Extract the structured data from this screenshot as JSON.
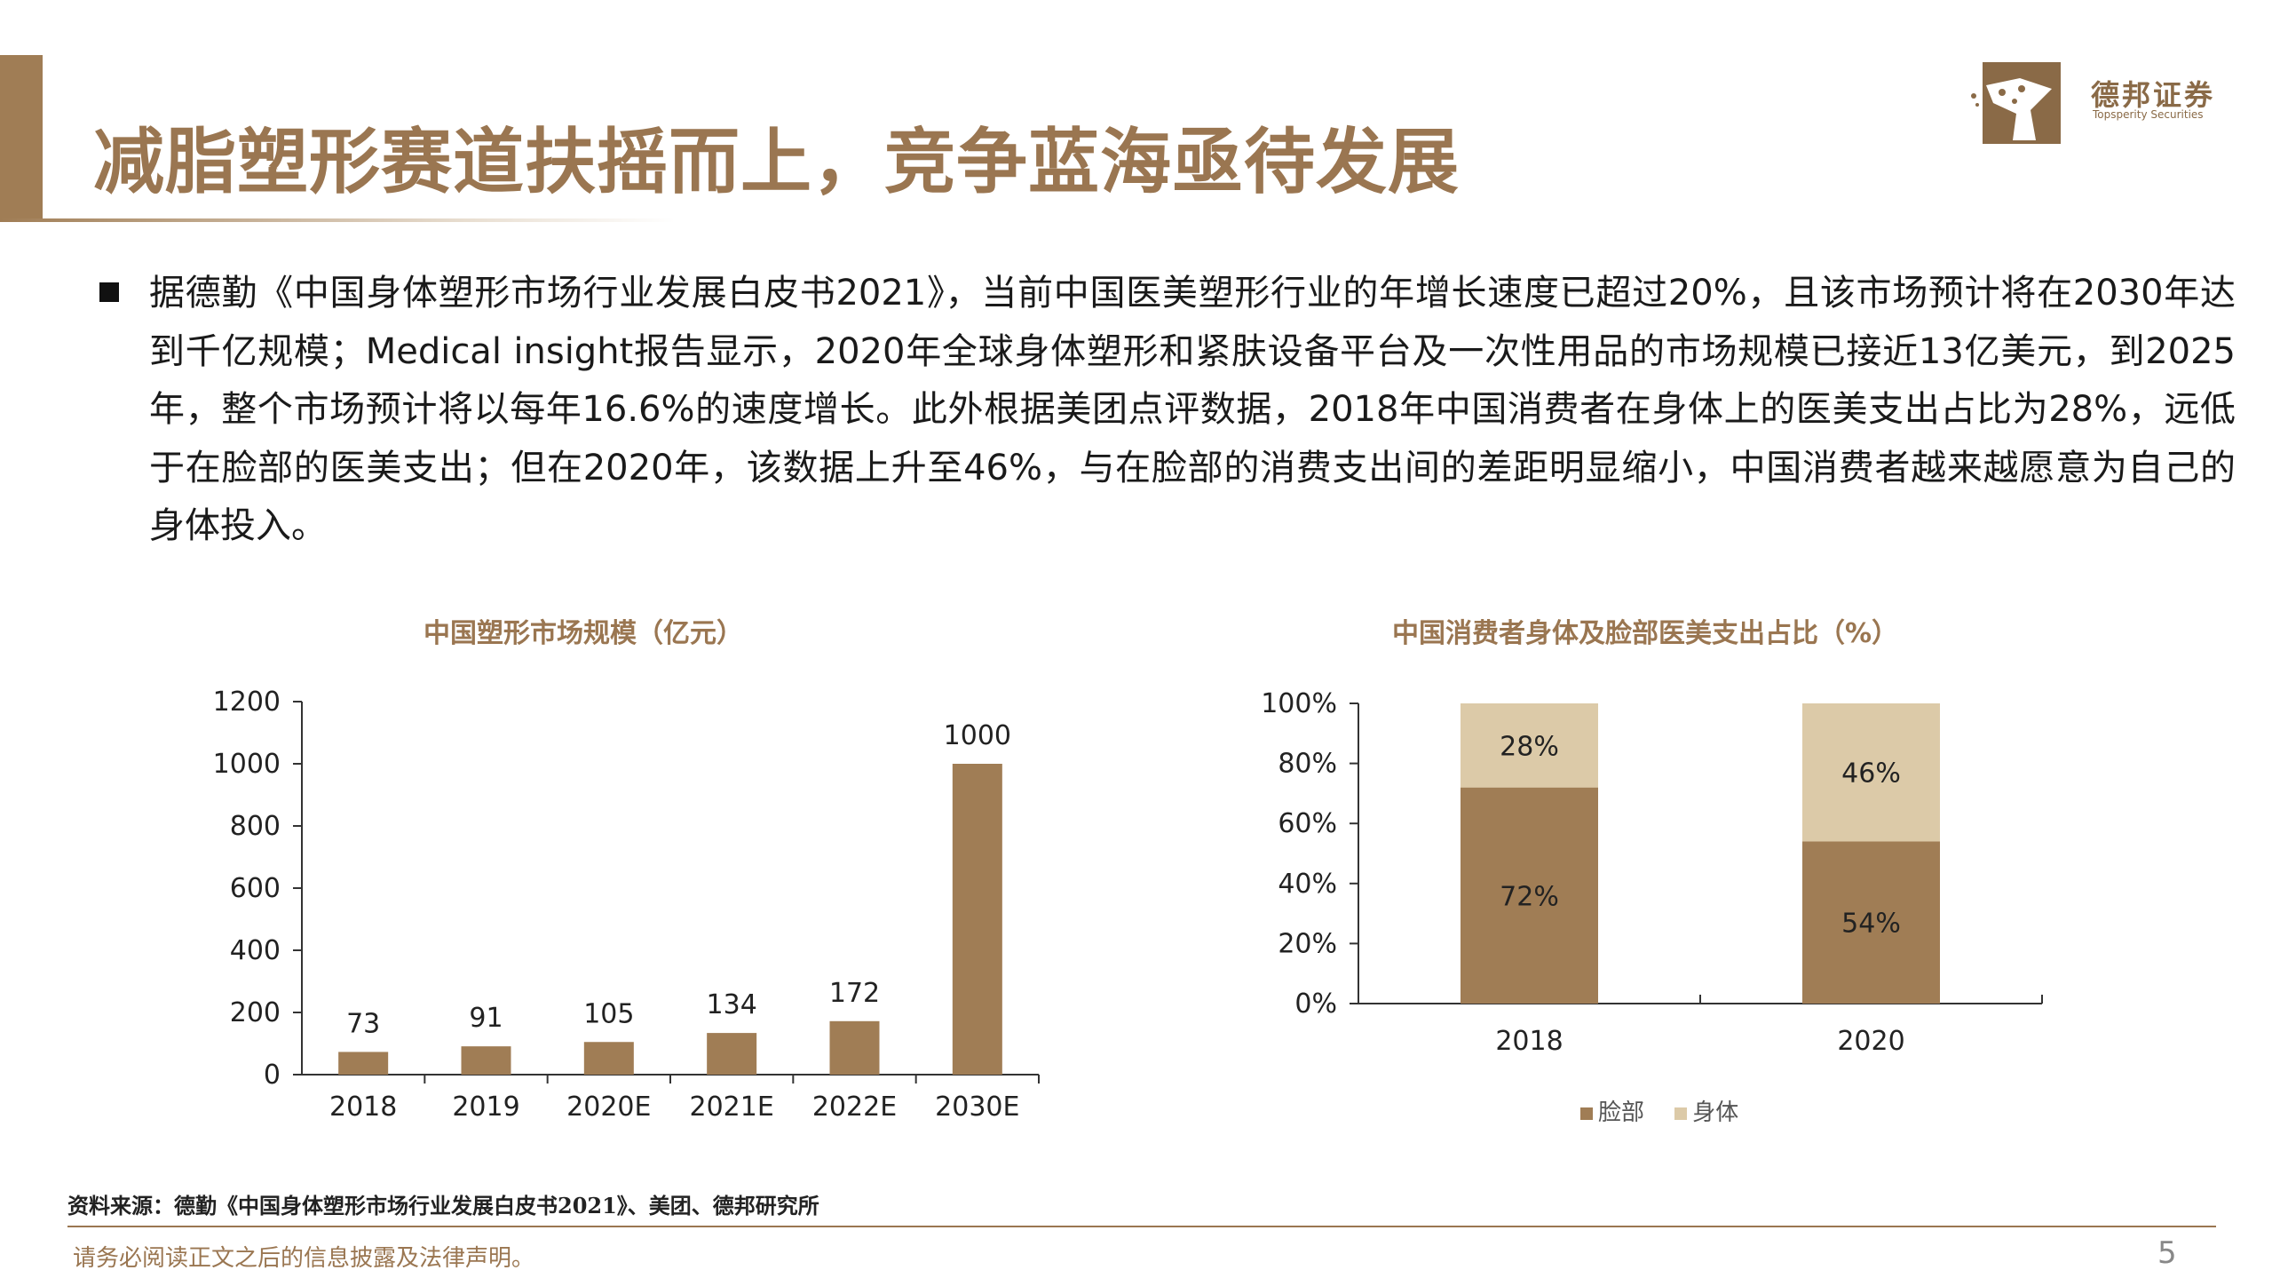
{
  "header": {
    "title": "减脂塑形赛道扶摇而上，竞争蓝海亟待发展",
    "logo_cn": "德邦证券",
    "logo_en": "Topsperity Securities"
  },
  "body": {
    "paragraph": "据德勤《中国身体塑形市场行业发展白皮书2021》，当前中国医美塑形行业的年增长速度已超过20%，且该市场预计将在2030年达到千亿规模；Medical insight报告显示，2020年全球身体塑形和紧肤设备平台及一次性用品的市场规模已接近13亿美元，到2025年，整个市场预计将以每年16.6%的速度增长。此外根据美团点评数据，2018年中国消费者在身体上的医美支出占比为28%，远低于在脸部的医美支出；但在2020年，该数据上升至46%，与在脸部的消费支出间的差距明显缩小，中国消费者越来越愿意为自己的身体投入。"
  },
  "colors": {
    "accent": "#9a7651",
    "bar_dark": "#a07d55",
    "bar_light": "#dccaa8"
  },
  "chart_data": [
    {
      "type": "bar",
      "title": "中国塑形市场规模（亿元）",
      "categories": [
        "2018",
        "2019",
        "2020E",
        "2021E",
        "2022E",
        "2030E"
      ],
      "values": [
        73,
        91,
        105,
        134,
        172,
        1000
      ],
      "ylim": [
        0,
        1200
      ],
      "yticks": [
        0,
        200,
        400,
        600,
        800,
        1000,
        1200
      ],
      "data_labels": true,
      "grid": false
    },
    {
      "type": "bar",
      "stacked": true,
      "title": "中国消费者身体及脸部医美支出占比（%）",
      "categories": [
        "2018",
        "2020"
      ],
      "series": [
        {
          "name": "脸部",
          "values": [
            72,
            54
          ],
          "labels": [
            "72%",
            "54%"
          ]
        },
        {
          "name": "身体",
          "values": [
            28,
            46
          ],
          "labels": [
            "28%",
            "46%"
          ]
        }
      ],
      "ylim": [
        0,
        100
      ],
      "yticks": [
        "0%",
        "20%",
        "40%",
        "60%",
        "80%",
        "100%"
      ],
      "legend": "bottom",
      "grid": false
    }
  ],
  "footer": {
    "source": "资料来源：德勤《中国身体塑形市场行业发展白皮书2021》、美团、德邦研究所",
    "disclaimer": "请务必阅读正文之后的信息披露及法律声明。",
    "page_number": "5"
  }
}
